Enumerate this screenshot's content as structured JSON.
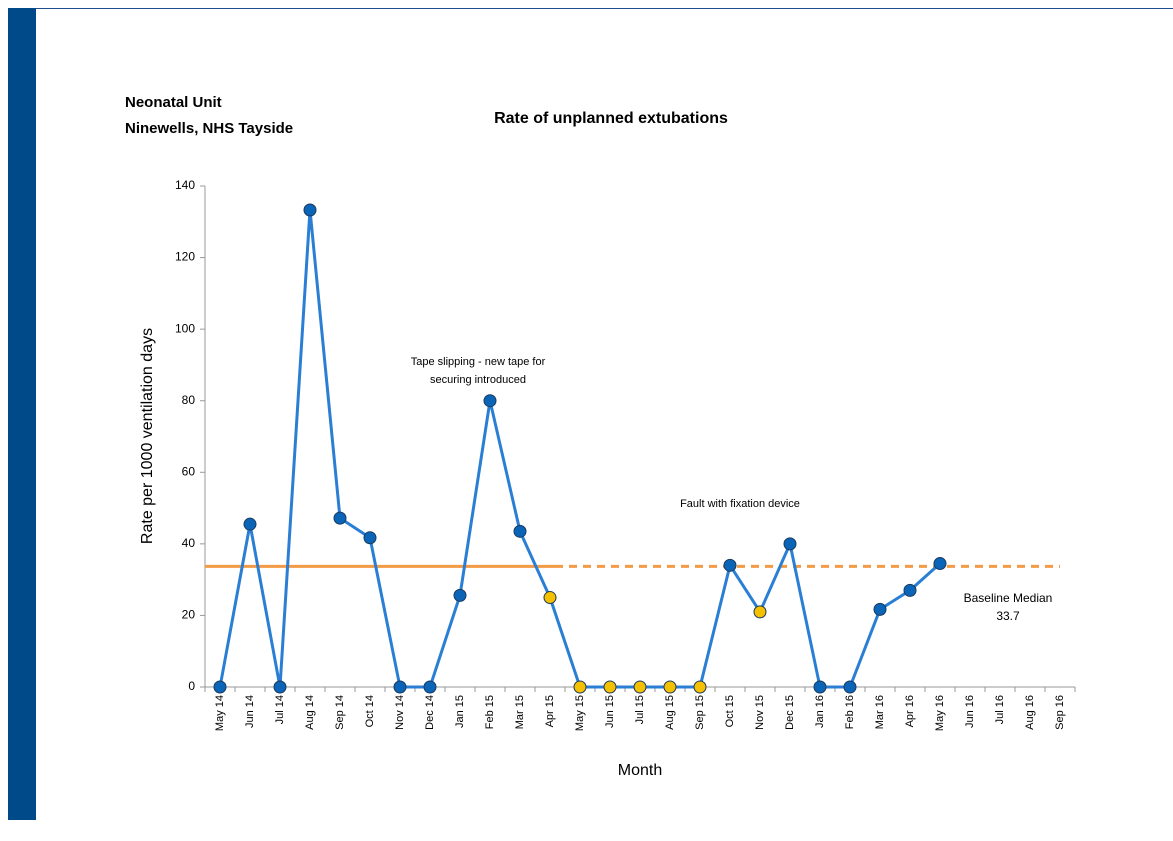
{
  "header": {
    "lines": [
      "Neonatal Unit",
      "Ninewells, NHS Tayside"
    ]
  },
  "chart_data": {
    "type": "line",
    "title": "Rate of unplanned  extubations",
    "x_label": "Month",
    "y_label": "Rate per 1000 ventilation days",
    "categories": [
      "May 14",
      "Jun 14",
      "Jul 14",
      "Aug 14",
      "Sep 14",
      "Oct 14",
      "Nov 14",
      "Dec 14",
      "Jan 15",
      "Feb 15",
      "Mar 15",
      "Apr 15",
      "May 15",
      "Jun 15",
      "Jul 15",
      "Aug 15",
      "Sep 15",
      "Oct 15",
      "Nov 15",
      "Dec 15",
      "Jan 16",
      "Feb 16",
      "Mar 16",
      "Apr 16",
      "May 16",
      "Jun 16",
      "Jul 16",
      "Aug 16",
      "Sep 16"
    ],
    "series": [
      {
        "name": "Rate",
        "color": "#2a7fd4",
        "values": [
          0,
          45.5,
          0,
          133.3,
          47.2,
          41.7,
          0,
          0,
          25.6,
          80,
          43.5,
          25,
          0,
          0,
          0,
          0,
          0,
          34,
          21,
          40,
          0,
          0,
          21.7,
          27,
          34.5,
          null,
          null,
          null,
          null
        ],
        "marker_colors": [
          "#0a64b8",
          "#0a64b8",
          "#0a64b8",
          "#0a64b8",
          "#0a64b8",
          "#0a64b8",
          "#0a64b8",
          "#0a64b8",
          "#0a64b8",
          "#0a64b8",
          "#0a64b8",
          "#f5c000",
          "#f5c000",
          "#f5c000",
          "#f5c000",
          "#f5c000",
          "#f5c000",
          "#0a64b8",
          "#f5c000",
          "#0a64b8",
          "#0a64b8",
          "#0a64b8",
          "#0a64b8",
          "#0a64b8",
          "#0a64b8",
          null,
          null,
          null,
          null
        ]
      }
    ],
    "median": {
      "label": "Baseline Median",
      "value": 33.7,
      "color": "#f39a45",
      "solid_until": "Apr 15"
    },
    "annotations": [
      {
        "lines": [
          "Tape slipping - new tape for",
          "securing introduced"
        ]
      },
      {
        "lines": [
          "Fault with fixation device"
        ]
      }
    ],
    "ylim": [
      0,
      140
    ],
    "yticks": [
      0,
      20,
      40,
      60,
      80,
      100,
      120,
      140
    ],
    "grid": false
  }
}
